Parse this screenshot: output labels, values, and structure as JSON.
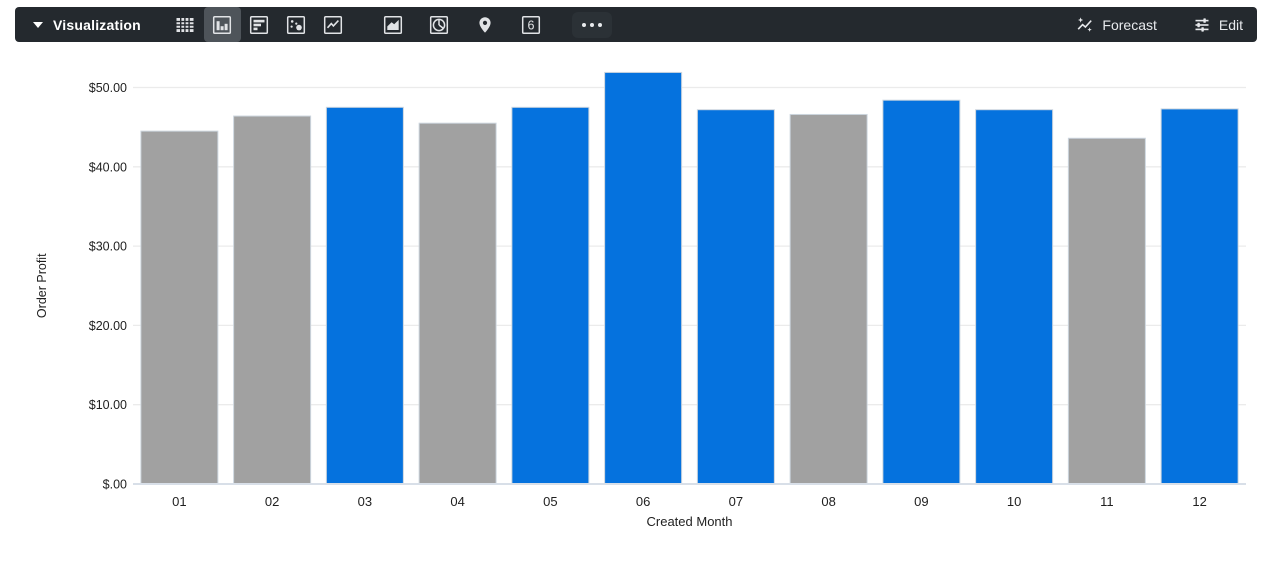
{
  "toolbar": {
    "selector_label": "Visualization",
    "selected_icon": "column-chart",
    "icons": [
      "table",
      "column-chart",
      "bar-chart",
      "scatter-plot",
      "line-chart",
      "area-chart",
      "pie-chart",
      "map",
      "single-value",
      "more"
    ],
    "single_value_icon_text": "6",
    "forecast_label": "Forecast",
    "edit_label": "Edit",
    "bg_color": "#24292E",
    "selected_bg_color": "#4E545A",
    "icon_color": "#E1E3E6"
  },
  "chart_data": {
    "type": "bar",
    "title": "",
    "xlabel": "Created Month",
    "ylabel": "Order Profit",
    "categories": [
      "01",
      "02",
      "03",
      "04",
      "05",
      "06",
      "07",
      "08",
      "09",
      "10",
      "11",
      "12"
    ],
    "values": [
      44.5,
      46.4,
      47.5,
      45.5,
      47.5,
      51.9,
      47.2,
      46.6,
      48.4,
      47.2,
      43.6,
      47.3
    ],
    "bar_colors": [
      "gray",
      "gray",
      "blue",
      "gray",
      "blue",
      "blue",
      "blue",
      "gray",
      "blue",
      "blue",
      "gray",
      "blue"
    ],
    "palette": {
      "gray": "#A1A1A1",
      "blue": "#0572DE"
    },
    "bar_stroke": "#CDD6DF",
    "ylim": [
      0,
      52.5
    ],
    "yticks": [
      0,
      10,
      20,
      30,
      40,
      50
    ],
    "ytick_labels": [
      "$.00",
      "$10.00",
      "$20.00",
      "$30.00",
      "$40.00",
      "$50.00"
    ],
    "grid": true,
    "gridline_color": "#EBEBEB",
    "axis_line_color": "#D8DFE8",
    "label_color": "#1F1F1F",
    "legend": "none"
  }
}
